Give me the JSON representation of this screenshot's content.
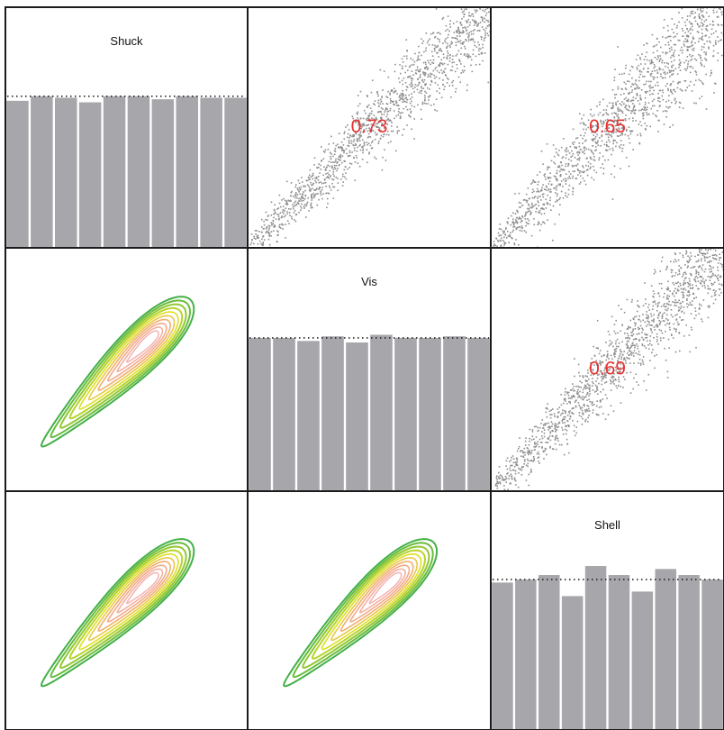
{
  "chart_data": {
    "type": "scatter-matrix",
    "variables": [
      "Shuck",
      "Vis",
      "Shell"
    ],
    "diagonal": {
      "type": "histogram",
      "bins": 10,
      "histograms": [
        {
          "variable": "Shuck",
          "values": [
            0.97,
            1.0,
            0.99,
            0.96,
            1.0,
            1.0,
            0.98,
            1.0,
            0.99,
            0.99
          ],
          "reference_line": 1.0
        },
        {
          "variable": "Vis",
          "values": [
            1.0,
            1.0,
            0.98,
            1.01,
            0.97,
            1.02,
            1.0,
            1.0,
            1.01,
            1.0
          ],
          "reference_line": 1.0
        },
        {
          "variable": "Shell",
          "values": [
            0.98,
            1.0,
            1.03,
            0.89,
            1.09,
            1.03,
            0.92,
            1.07,
            1.03,
            1.0
          ],
          "reference_line": 1.0
        }
      ]
    },
    "upper": {
      "type": "scatter",
      "correlations": [
        {
          "row": 0,
          "col": 1,
          "r": "0.73"
        },
        {
          "row": 0,
          "col": 2,
          "r": "0.65"
        },
        {
          "row": 1,
          "col": 2,
          "r": "0.69"
        }
      ]
    },
    "lower": {
      "type": "density-contour",
      "panels": [
        {
          "row": 1,
          "col": 0
        },
        {
          "row": 2,
          "col": 0
        },
        {
          "row": 2,
          "col": 1
        }
      ],
      "contour_levels": 10
    },
    "colors": {
      "bars": "#a7a7ab",
      "points": "#8e8e8e",
      "correlation_text": "#e8302e",
      "contour_outer": "#43b047",
      "contour_mid": "#e0e023",
      "contour_inner": "#f4b6b6",
      "frame": "#1b1b1b"
    }
  }
}
